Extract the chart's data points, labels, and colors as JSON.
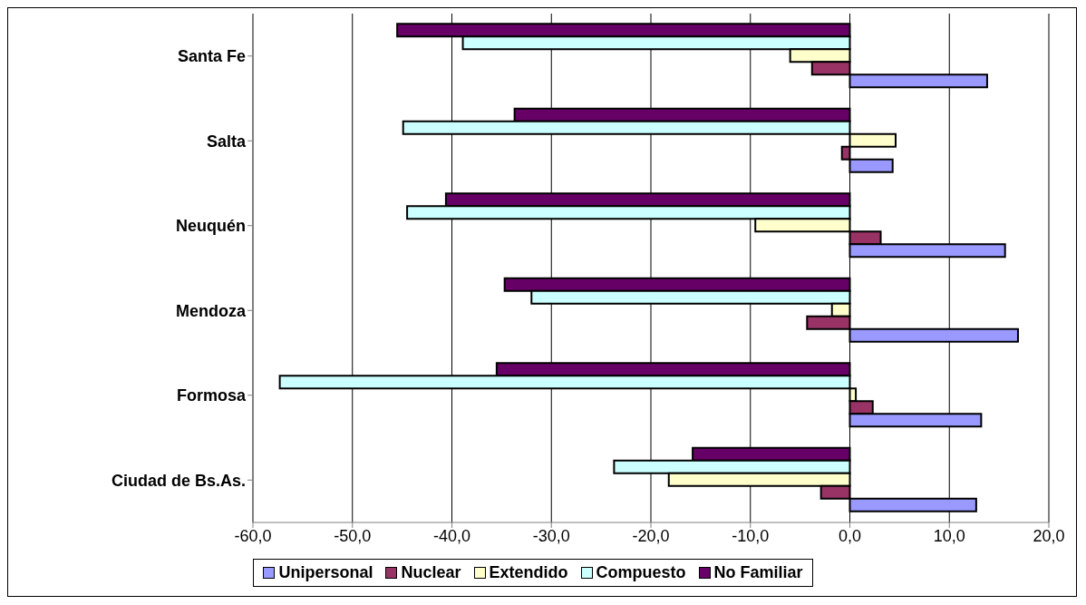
{
  "chart_data": {
    "type": "bar",
    "orientation": "horizontal",
    "categories": [
      "Santa Fe",
      "Salta",
      "Neuquén",
      "Mendoza",
      "Formosa",
      "Ciudad de Bs.As."
    ],
    "series": [
      {
        "name": "Unipersonal",
        "color": "#9999ff",
        "values": [
          13.8,
          4.3,
          15.6,
          16.9,
          13.2,
          12.7
        ]
      },
      {
        "name": "Nuclear",
        "color": "#993366",
        "values": [
          -3.8,
          -0.8,
          3.1,
          -4.3,
          2.3,
          -2.9
        ]
      },
      {
        "name": "Extendido",
        "color": "#ffffcc",
        "values": [
          -6.0,
          4.6,
          -9.5,
          -1.8,
          0.6,
          -18.2
        ]
      },
      {
        "name": "Compuesto",
        "color": "#ccffff",
        "values": [
          -38.9,
          -44.9,
          -44.5,
          -32.0,
          -57.3,
          -23.7
        ]
      },
      {
        "name": "No Familiar",
        "color": "#660066",
        "values": [
          -45.5,
          -33.7,
          -40.6,
          -34.7,
          -35.5,
          -15.8
        ]
      }
    ],
    "xlim": [
      -60,
      20
    ],
    "xticks": [
      {
        "value": -60,
        "label": "-60,0"
      },
      {
        "value": -50,
        "label": "-50,0"
      },
      {
        "value": -40,
        "label": "-40,0"
      },
      {
        "value": -30,
        "label": "-30,0"
      },
      {
        "value": -20,
        "label": "-20,0"
      },
      {
        "value": -10,
        "label": "-10,0"
      },
      {
        "value": 0,
        "label": "0,0"
      },
      {
        "value": 10,
        "label": "10,0"
      },
      {
        "value": 20,
        "label": "20,0"
      }
    ],
    "grid": "x",
    "legend": "bottom"
  }
}
